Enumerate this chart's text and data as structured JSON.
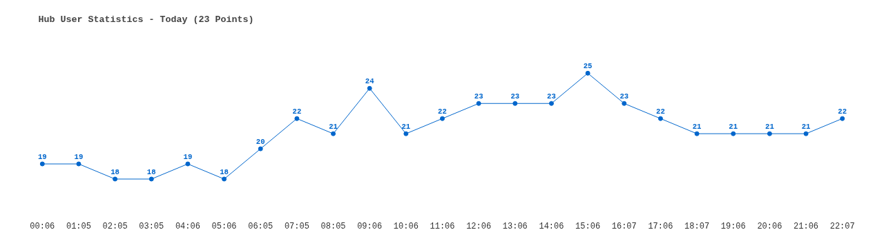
{
  "chart_data": {
    "type": "line",
    "title": "Hub User Statistics - Today (23 Points)",
    "categories": [
      "00:06",
      "01:05",
      "02:05",
      "03:05",
      "04:06",
      "05:06",
      "06:05",
      "07:05",
      "08:05",
      "09:06",
      "10:06",
      "11:06",
      "12:06",
      "13:06",
      "14:06",
      "15:06",
      "16:07",
      "17:06",
      "18:07",
      "19:06",
      "20:06",
      "21:06",
      "22:07"
    ],
    "series": [
      {
        "color": "#0066cc",
        "values": [
          19,
          19,
          18,
          18,
          19,
          18,
          20,
          22,
          21,
          24,
          21,
          22,
          23,
          23,
          23,
          25,
          23,
          22,
          21,
          21,
          21,
          21,
          22
        ]
      }
    ],
    "data_labels": true,
    "marker": "circle",
    "line_style": "solid",
    "grid": false
  }
}
